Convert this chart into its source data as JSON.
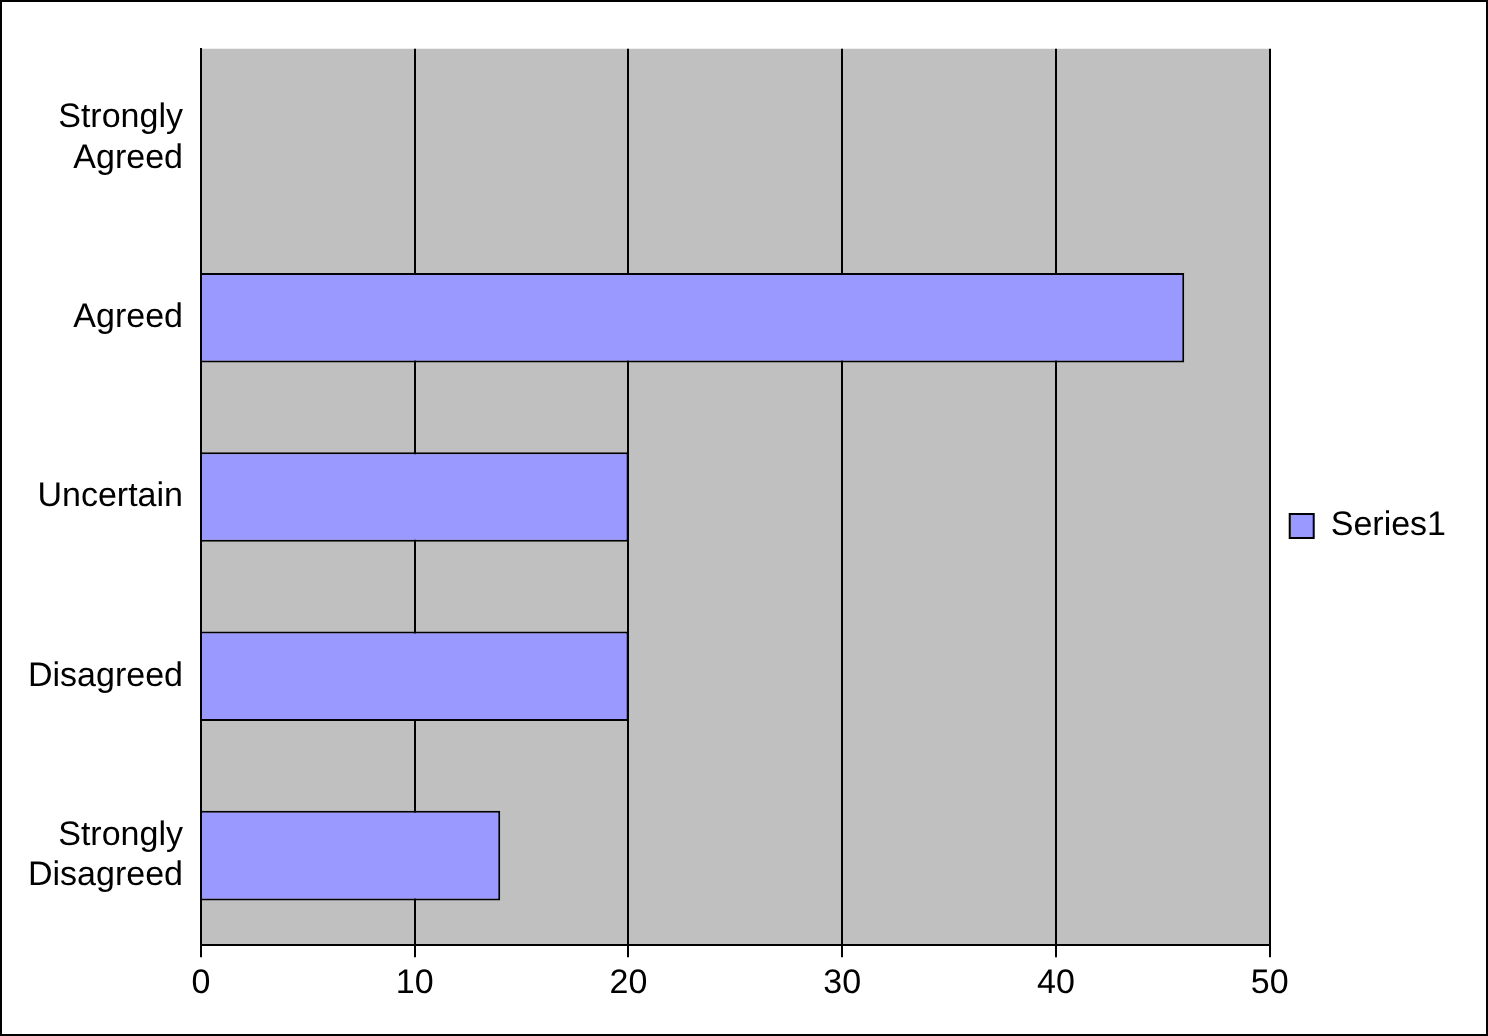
{
  "chart_data": {
    "type": "bar",
    "orientation": "horizontal",
    "categories": [
      "Strongly\nAgreed",
      "Agreed",
      "Uncertain",
      "Disagreed",
      "Strongly\nDisagreed"
    ],
    "series": [
      {
        "name": "Series1",
        "color": "#9999ff",
        "values": [
          0,
          46,
          20,
          20,
          14
        ]
      }
    ],
    "xlim": [
      0,
      50
    ],
    "xticks": [
      0,
      10,
      20,
      30,
      40,
      50
    ],
    "grid": "x",
    "legend": "right"
  }
}
